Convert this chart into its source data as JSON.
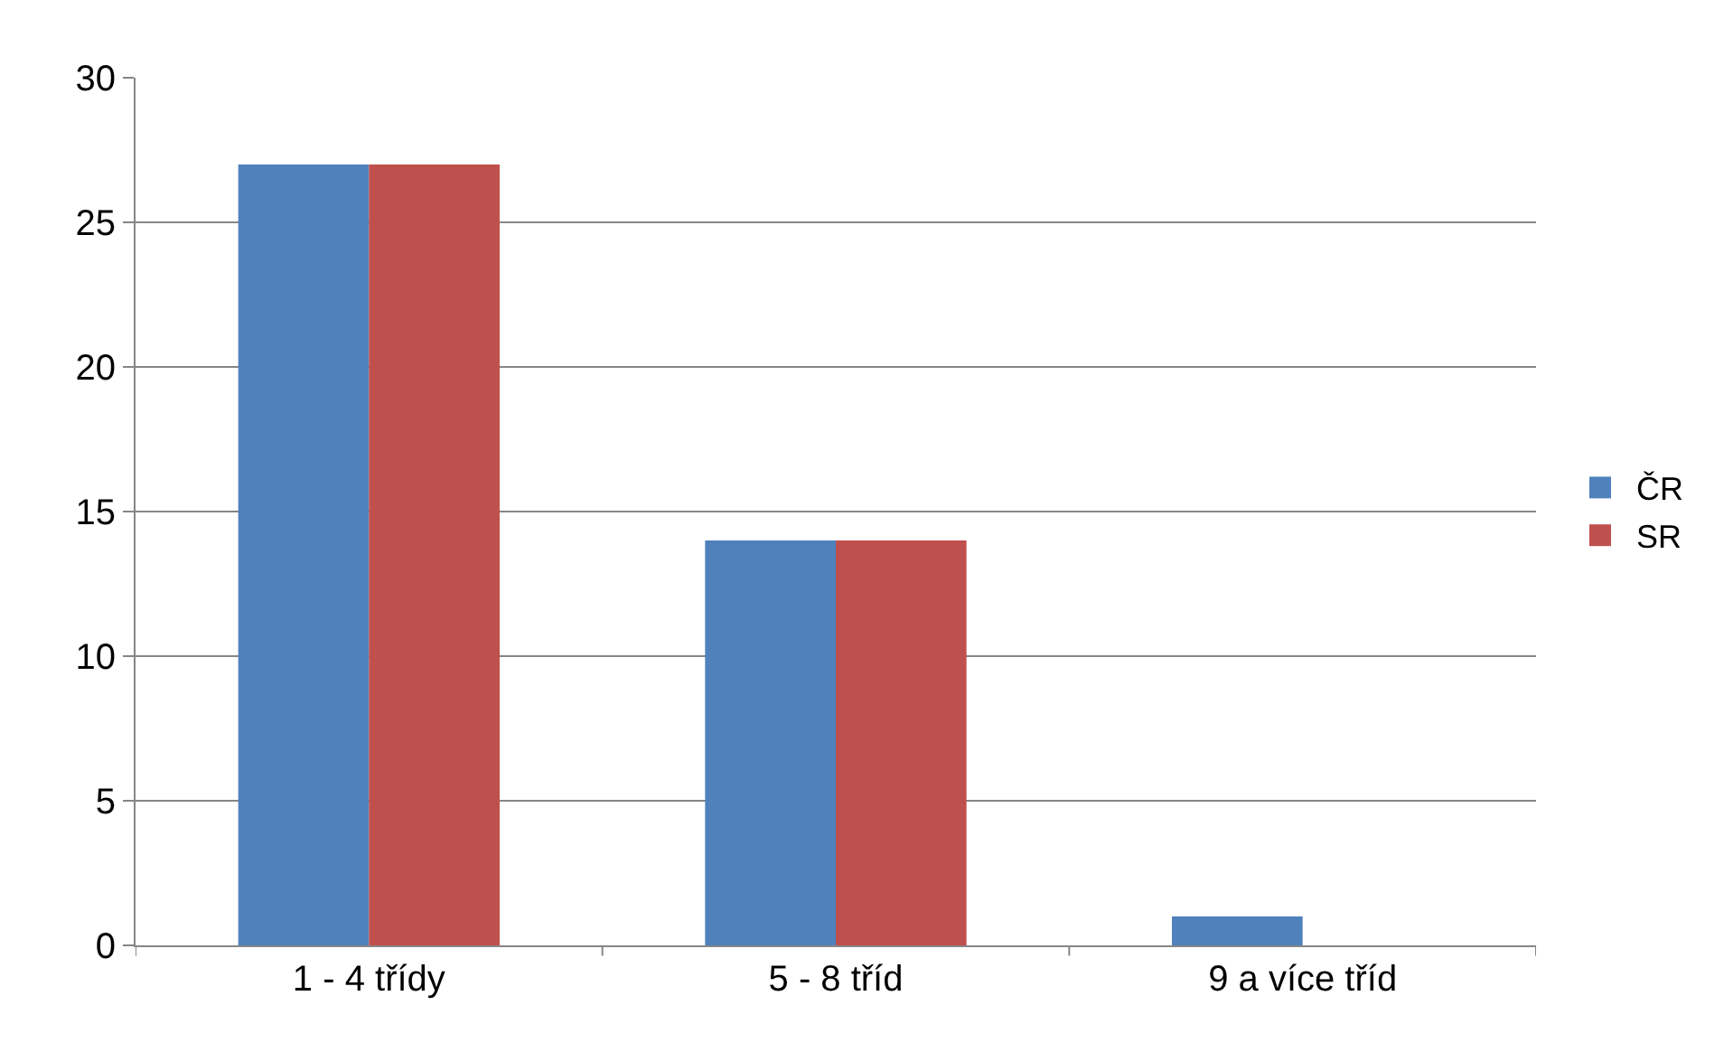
{
  "chart_data": {
    "type": "bar",
    "categories": [
      "1 - 4 třídy",
      "5 - 8 tříd",
      "9 a více tříd"
    ],
    "series": [
      {
        "name": "ČR",
        "color": "#4f81bd",
        "values": [
          27,
          14,
          1
        ]
      },
      {
        "name": "SR",
        "color": "#c0504d",
        "values": [
          27,
          14,
          0
        ]
      }
    ],
    "ylim": [
      0,
      30
    ],
    "yticks": [
      0,
      5,
      10,
      15,
      20,
      25,
      30
    ],
    "grid": "y",
    "legend": "right"
  }
}
